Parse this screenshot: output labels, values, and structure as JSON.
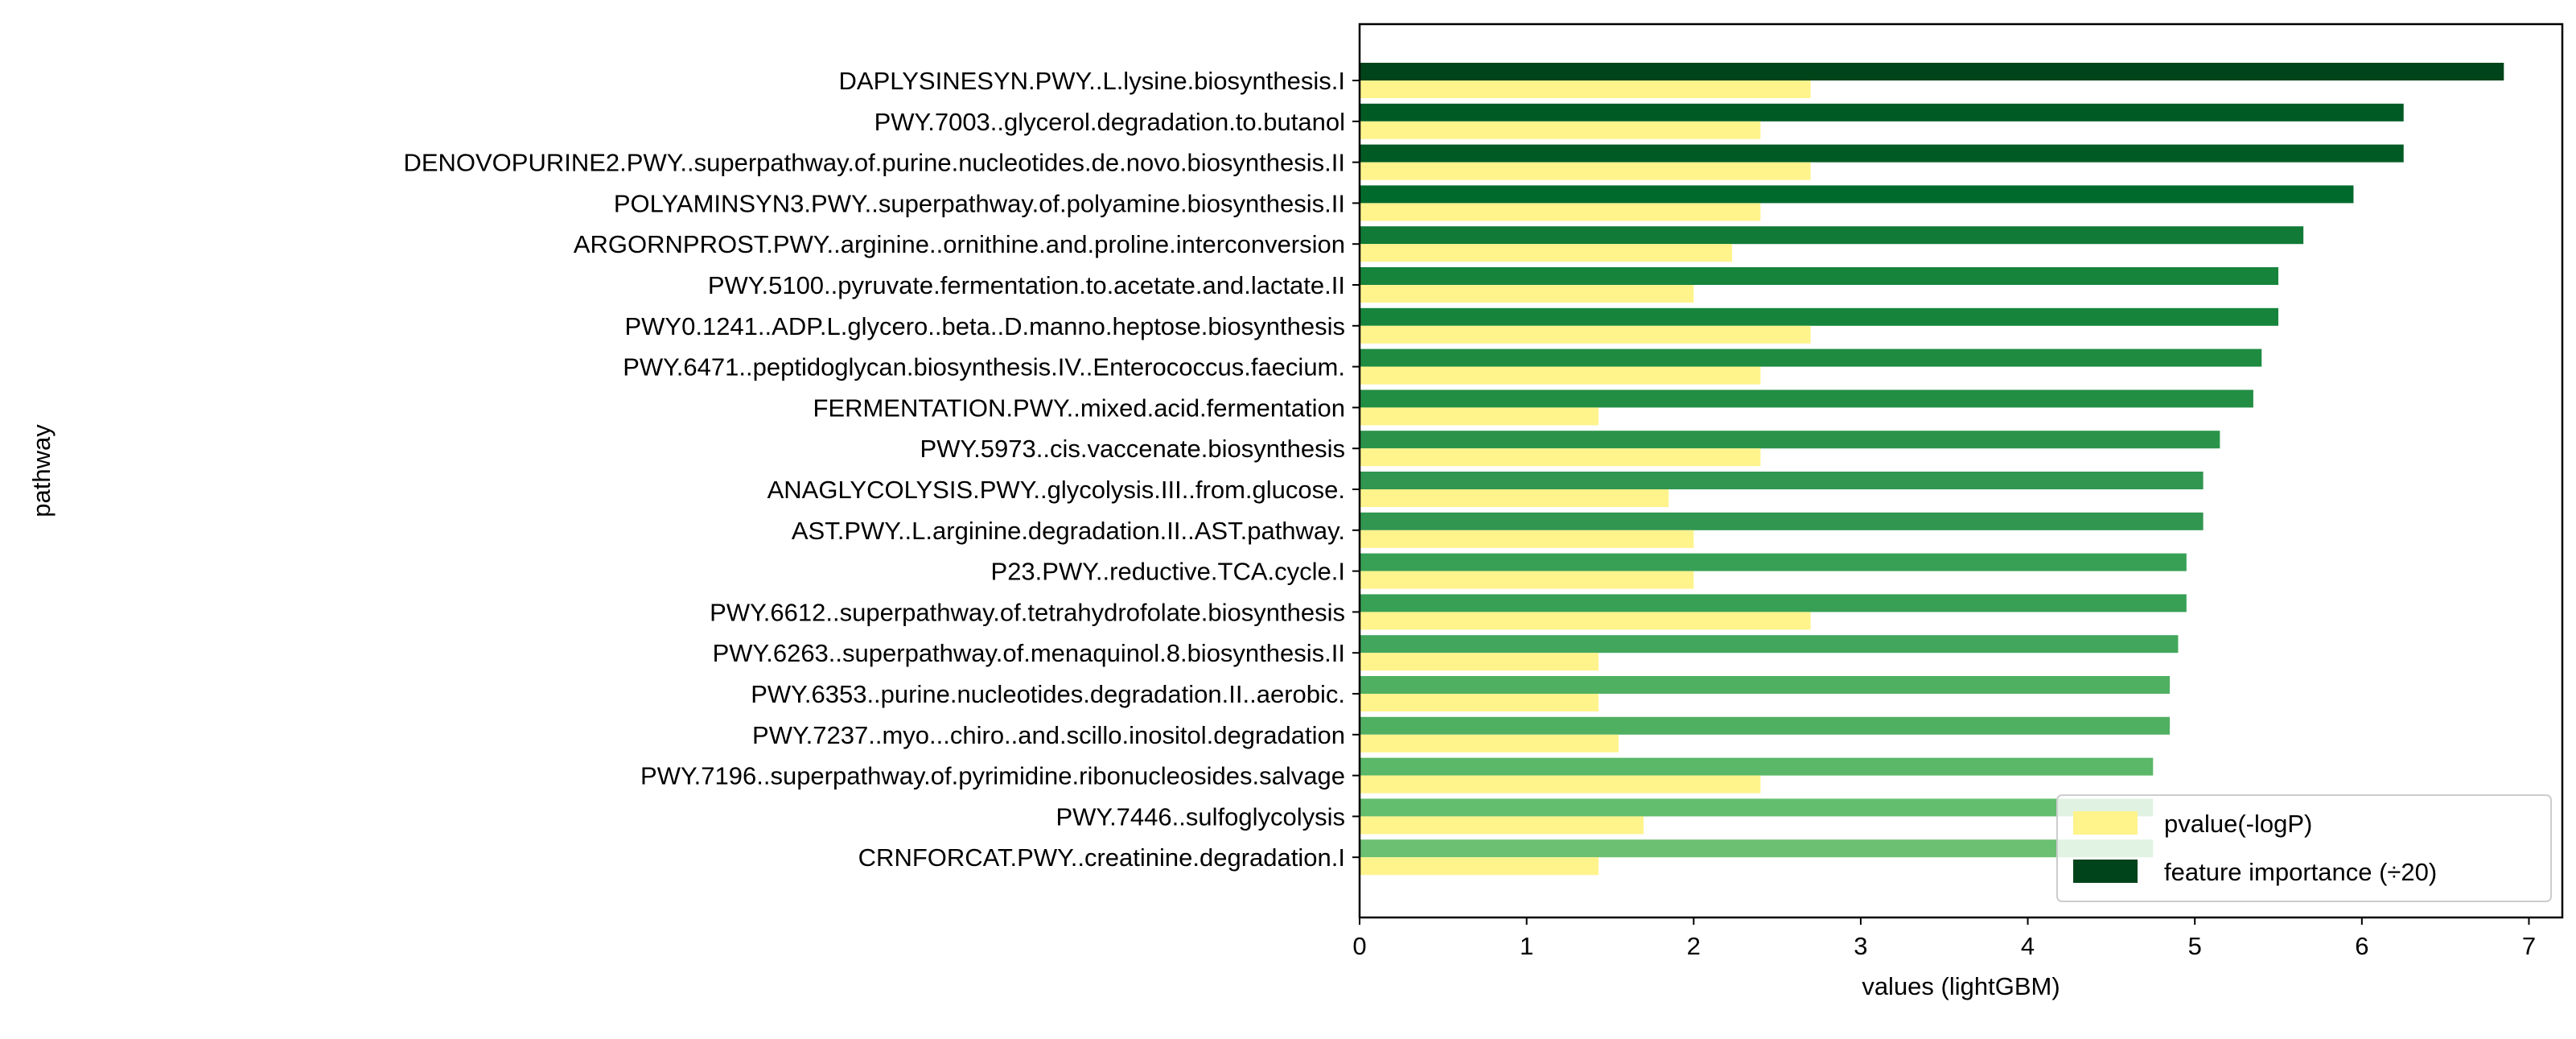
{
  "chart_data": {
    "type": "bar",
    "orientation": "horizontal",
    "xlabel": "values (lightGBM)",
    "ylabel": "pathway",
    "xlim": [
      0,
      7.2
    ],
    "xticks": [
      "0",
      "1",
      "2",
      "3",
      "4",
      "5",
      "6",
      "7"
    ],
    "grid": false,
    "legend_position": "lower-right",
    "categories": [
      "DAPLYSINESYN.PWY..L.lysine.biosynthesis.I",
      "PWY.7003..glycerol.degradation.to.butanol",
      "DENOVOPURINE2.PWY..superpathway.of.purine.nucleotides.de.novo.biosynthesis.II",
      "POLYAMINSYN3.PWY..superpathway.of.polyamine.biosynthesis.II",
      "ARGORNPROST.PWY..arginine..ornithine.and.proline.interconversion",
      "PWY.5100..pyruvate.fermentation.to.acetate.and.lactate.II",
      "PWY0.1241..ADP.L.glycero..beta..D.manno.heptose.biosynthesis",
      "PWY.6471..peptidoglycan.biosynthesis.IV..Enterococcus.faecium.",
      "FERMENTATION.PWY..mixed.acid.fermentation",
      "PWY.5973..cis.vaccenate.biosynthesis",
      "ANAGLYCOLYSIS.PWY..glycolysis.III..from.glucose.",
      "AST.PWY..L.arginine.degradation.II..AST.pathway.",
      "P23.PWY..reductive.TCA.cycle.I",
      "PWY.6612..superpathway.of.tetrahydrofolate.biosynthesis",
      "PWY.6263..superpathway.of.menaquinol.8.biosynthesis.II",
      "PWY.6353..purine.nucleotides.degradation.II..aerobic.",
      "PWY.7237..myo...chiro..and.scillo.inositol.degradation",
      "PWY.7196..superpathway.of.pyrimidine.ribonucleosides.salvage",
      "PWY.7446..sulfoglycolysis",
      "CRNFORCAT.PWY..creatinine.degradation.I"
    ],
    "series": [
      {
        "name": "feature importance (÷20)",
        "color": "#00441b",
        "values": [
          6.85,
          6.25,
          6.25,
          5.95,
          5.65,
          5.5,
          5.5,
          5.4,
          5.35,
          5.15,
          5.05,
          5.05,
          4.95,
          4.95,
          4.9,
          4.85,
          4.85,
          4.75,
          4.75,
          4.75
        ],
        "colors": [
          "#00441b",
          "#005a24",
          "#005a24",
          "#006a2c",
          "#107a36",
          "#17843c",
          "#17843c",
          "#1e8b41",
          "#228e44",
          "#2a9349",
          "#309650",
          "#309650",
          "#37a055",
          "#37a055",
          "#42a75c",
          "#50b062",
          "#50b062",
          "#5ab868",
          "#63be6d",
          "#6bc072"
        ]
      },
      {
        "name": "pvalue(-logP)",
        "color": "#fff38c",
        "values": [
          2.7,
          2.4,
          2.7,
          2.4,
          2.23,
          2.0,
          2.7,
          2.4,
          1.43,
          2.4,
          1.85,
          2.0,
          2.0,
          2.7,
          1.43,
          1.43,
          1.55,
          2.4,
          1.7,
          1.43
        ]
      }
    ]
  }
}
